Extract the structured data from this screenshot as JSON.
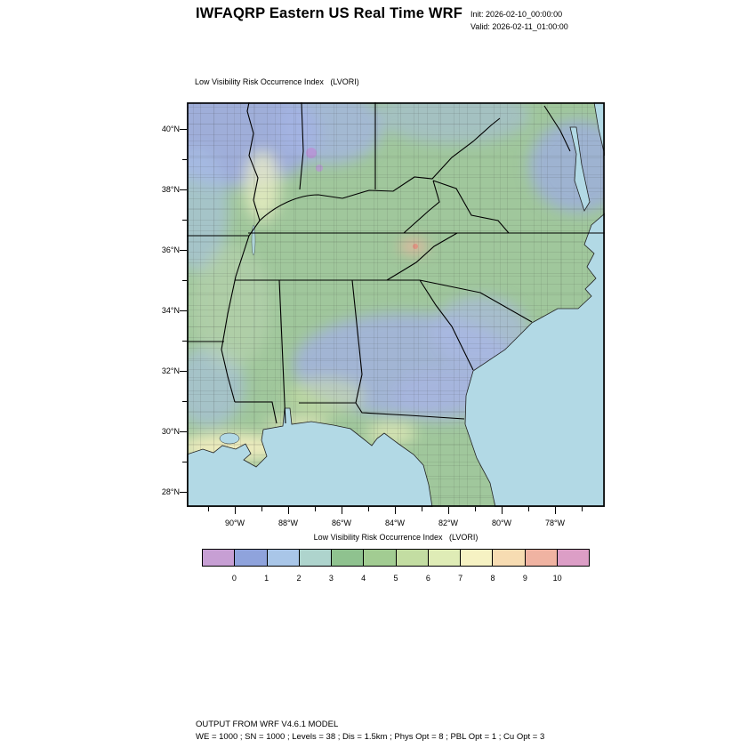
{
  "header": {
    "title": "IWFAQRP Eastern US Real Time WRF",
    "init_label": "Init: 2026-02-10_00:00:00",
    "valid_label": "Valid: 2026-02-11_01:00:00"
  },
  "map": {
    "subtitle": "Low Visibility Risk Occurrence Index   (LVORI)",
    "lat_ticks": [
      "40°N",
      "38°N",
      "36°N",
      "34°N",
      "32°N",
      "30°N",
      "28°N"
    ],
    "lon_ticks": [
      "90°W",
      "88°W",
      "86°W",
      "84°W",
      "82°W",
      "80°W",
      "78°W"
    ]
  },
  "colorbar": {
    "title": "Low Visibility Risk Occurrence Index   (LVORI)",
    "tick_labels": [
      "0",
      "1",
      "2",
      "3",
      "4",
      "5",
      "6",
      "7",
      "8",
      "9",
      "10"
    ],
    "colors": [
      "#c79fd4",
      "#8fa3dc",
      "#a9c6e8",
      "#aed4cd",
      "#8fc28f",
      "#a2cc92",
      "#c3dda2",
      "#dfecb6",
      "#f6f2c3",
      "#f7dcb2",
      "#f0b3a2",
      "#dc9ec6"
    ]
  },
  "footer": {
    "line1": "OUTPUT FROM WRF V4.6.1 MODEL",
    "line2": "WE = 1000 ; SN = 1000 ; Levels = 38 ; Dis = 1.5km ; Phys Opt = 8 ; PBL Opt = 1 ; Cu Opt = 3"
  }
}
